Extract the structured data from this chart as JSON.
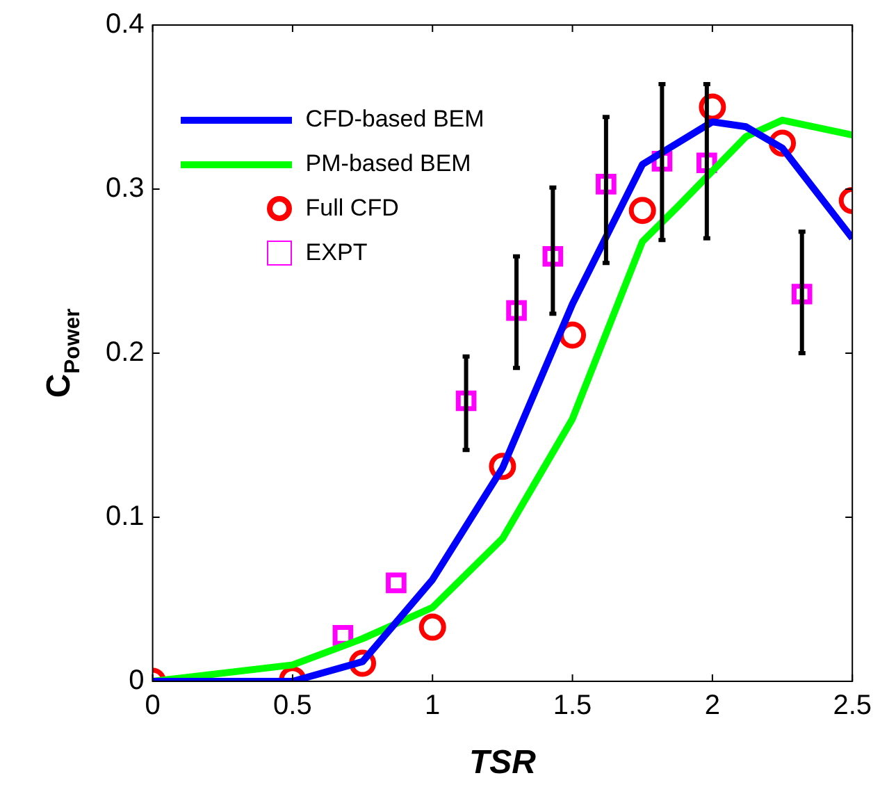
{
  "chart_data": {
    "type": "line",
    "xlabel": "TSR",
    "ylabel": "C$_{Power}$",
    "xlim": [
      0,
      2.5
    ],
    "xticks": [
      0,
      0.5,
      1,
      1.5,
      2,
      2.5
    ],
    "ylim": [
      0,
      0.4
    ],
    "yticks": [
      0,
      0.1,
      0.2,
      0.3,
      0.4
    ],
    "legend": "top left",
    "series": [
      {
        "name": "CFD-based BEM",
        "marker": "none",
        "color": "#0000ff",
        "x": [
          0,
          0.5,
          0.75,
          1,
          1.25,
          1.5,
          1.75,
          2,
          2.12,
          2.25,
          2.5
        ],
        "values": [
          0,
          0,
          0.012,
          0.062,
          0.13,
          0.23,
          0.315,
          0.341,
          0.338,
          0.325,
          0.27
        ]
      },
      {
        "name": "PM-based BEM",
        "marker": "none",
        "color": "#00ff00",
        "x": [
          0,
          0.5,
          0.75,
          1,
          1.25,
          1.5,
          1.75,
          1.88,
          2.12,
          2.25,
          2.5
        ],
        "values": [
          0,
          0.01,
          0.026,
          0.045,
          0.087,
          0.16,
          0.268,
          0.29,
          0.332,
          0.342,
          0.333
        ]
      },
      {
        "name": "Full CFD",
        "type": "scatter",
        "marker": "circle",
        "color": "#ff0000",
        "x": [
          0,
          0.5,
          0.75,
          1,
          1.25,
          1.5,
          1.75,
          2,
          2.25,
          2.5
        ],
        "values": [
          0,
          0.001,
          0.011,
          0.033,
          0.131,
          0.211,
          0.287,
          0.35,
          0.328,
          0.293
        ]
      },
      {
        "name": "EXPT",
        "type": "scatter",
        "marker": "square",
        "color": "#ff00ff",
        "x": [
          0.68,
          0.87,
          1.12,
          1.3,
          1.43,
          1.62,
          1.82,
          1.98,
          2.32
        ],
        "values": [
          0.028,
          0.06,
          0.171,
          0.226,
          0.259,
          0.303,
          0.317,
          0.316,
          0.236
        ],
        "errors": [
          null,
          null,
          [
            0.141,
            0.198
          ],
          [
            0.191,
            0.259
          ],
          [
            0.224,
            0.301
          ],
          [
            0.255,
            0.344
          ],
          [
            0.269,
            0.364
          ],
          [
            0.27,
            0.364
          ],
          [
            0.2,
            0.274
          ]
        ]
      }
    ]
  }
}
